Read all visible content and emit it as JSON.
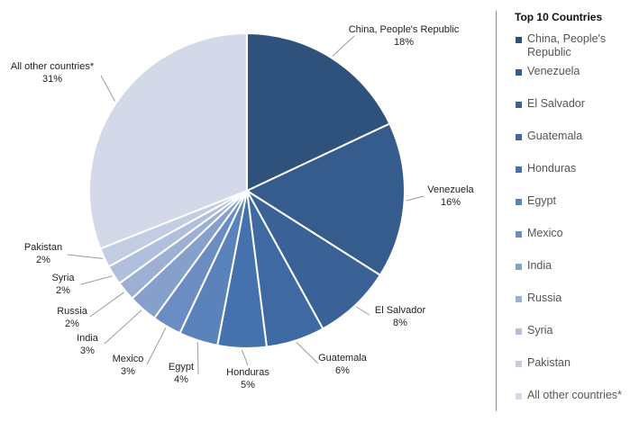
{
  "chart_data": {
    "type": "pie",
    "title": "",
    "legend": {
      "title": "Top 10 Countries",
      "placement": "right"
    },
    "slices": [
      {
        "name": "China, People's Republic",
        "label_lines": [
          "China, People's Republic",
          "18%"
        ],
        "value": 18,
        "color": "#2e527b"
      },
      {
        "name": "Venezuela",
        "label_lines": [
          "Venezuela",
          "16%"
        ],
        "value": 16,
        "color": "#355c8c"
      },
      {
        "name": "El Salvador",
        "label_lines": [
          "El Salvador",
          "8%"
        ],
        "value": 8,
        "color": "#3a6296"
      },
      {
        "name": "Guatemala",
        "label_lines": [
          "Guatemala",
          "6%"
        ],
        "value": 6,
        "color": "#3e69a2"
      },
      {
        "name": "Honduras",
        "label_lines": [
          "Honduras",
          "5%"
        ],
        "value": 5,
        "color": "#4572ae"
      },
      {
        "name": "Egypt",
        "label_lines": [
          "Egypt",
          "4%"
        ],
        "value": 4,
        "color": "#5a82bb"
      },
      {
        "name": "Mexico",
        "label_lines": [
          "Mexico",
          "3%"
        ],
        "value": 3,
        "color": "#6b8dc4"
      },
      {
        "name": "India",
        "label_lines": [
          "India",
          "3%"
        ],
        "value": 3,
        "color": "#86a0cc"
      },
      {
        "name": "Russia",
        "label_lines": [
          "Russia",
          "2%"
        ],
        "value": 2,
        "color": "#9db0d4"
      },
      {
        "name": "Syria",
        "label_lines": [
          "Syria",
          "2%"
        ],
        "value": 2,
        "color": "#b0bfdc"
      },
      {
        "name": "Pakistan",
        "label_lines": [
          "Pakistan",
          "2%"
        ],
        "value": 2,
        "color": "#c2cde3"
      },
      {
        "name": "All other countries*",
        "label_lines": [
          "All other countries*",
          "31%"
        ],
        "value": 31,
        "color": "#d3d9e8"
      }
    ]
  }
}
